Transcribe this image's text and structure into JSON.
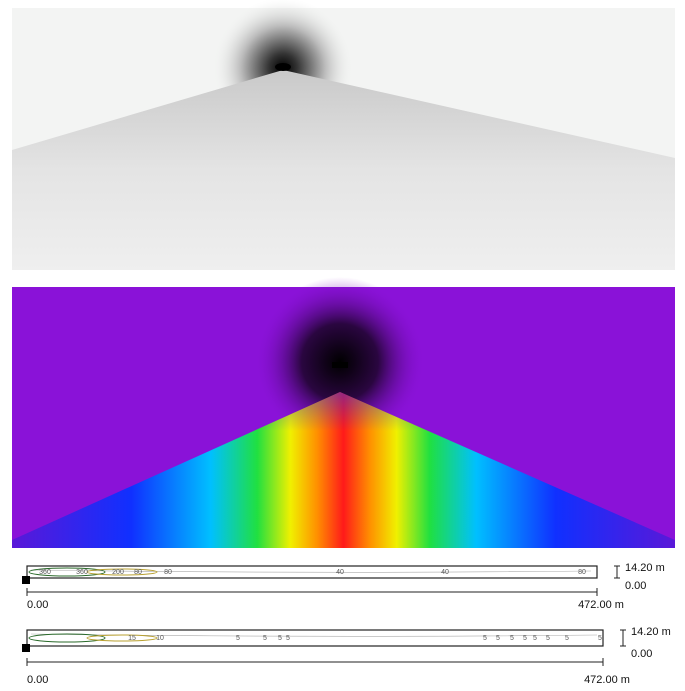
{
  "plots": [
    {
      "contour_labels": [
        "360",
        "360",
        "200",
        "80",
        "80",
        "40",
        "40",
        "80"
      ],
      "height_label": "14.20 m",
      "height_zero": "0.00",
      "length_start": "0.00",
      "length_end": "472.00 m"
    },
    {
      "contour_labels": [
        "15",
        "10",
        "5",
        "5",
        "5",
        "5",
        "5",
        "5",
        "5",
        "5",
        "5",
        "5",
        "5",
        "5"
      ],
      "height_label": "14.20 m",
      "height_zero": "0.00",
      "length_start": "0.00",
      "length_end": "472.00 m"
    }
  ]
}
